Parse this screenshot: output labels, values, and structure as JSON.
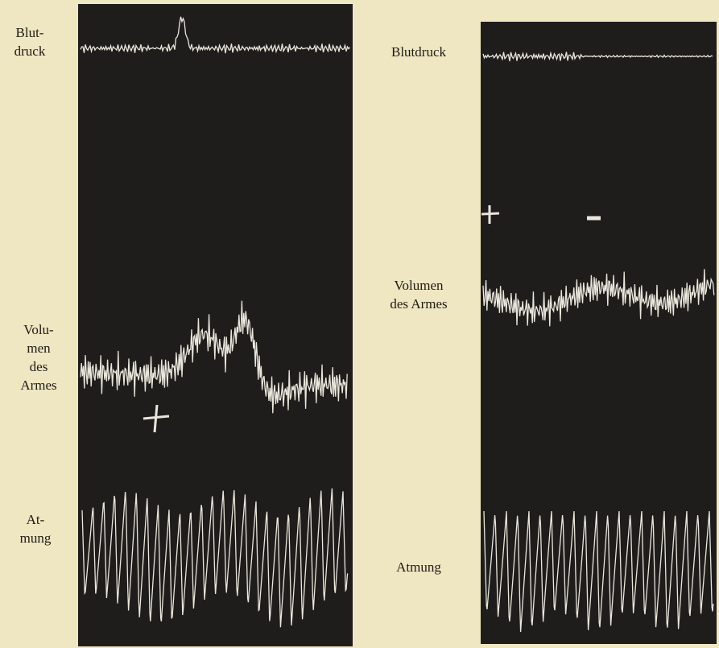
{
  "left": {
    "labels": [
      {
        "lines": [
          "Blut-",
          "druck"
        ]
      },
      {
        "lines": [
          "Volu-",
          "men",
          "des",
          "Armes"
        ]
      },
      {
        "lines": [
          "At-",
          "mung"
        ]
      }
    ]
  },
  "right": {
    "labels": [
      {
        "lines": [
          "Blutdruck"
        ]
      },
      {
        "lines": [
          "Volumen",
          "des Armes"
        ]
      },
      {
        "lines": [
          "Atmung"
        ]
      }
    ]
  }
}
